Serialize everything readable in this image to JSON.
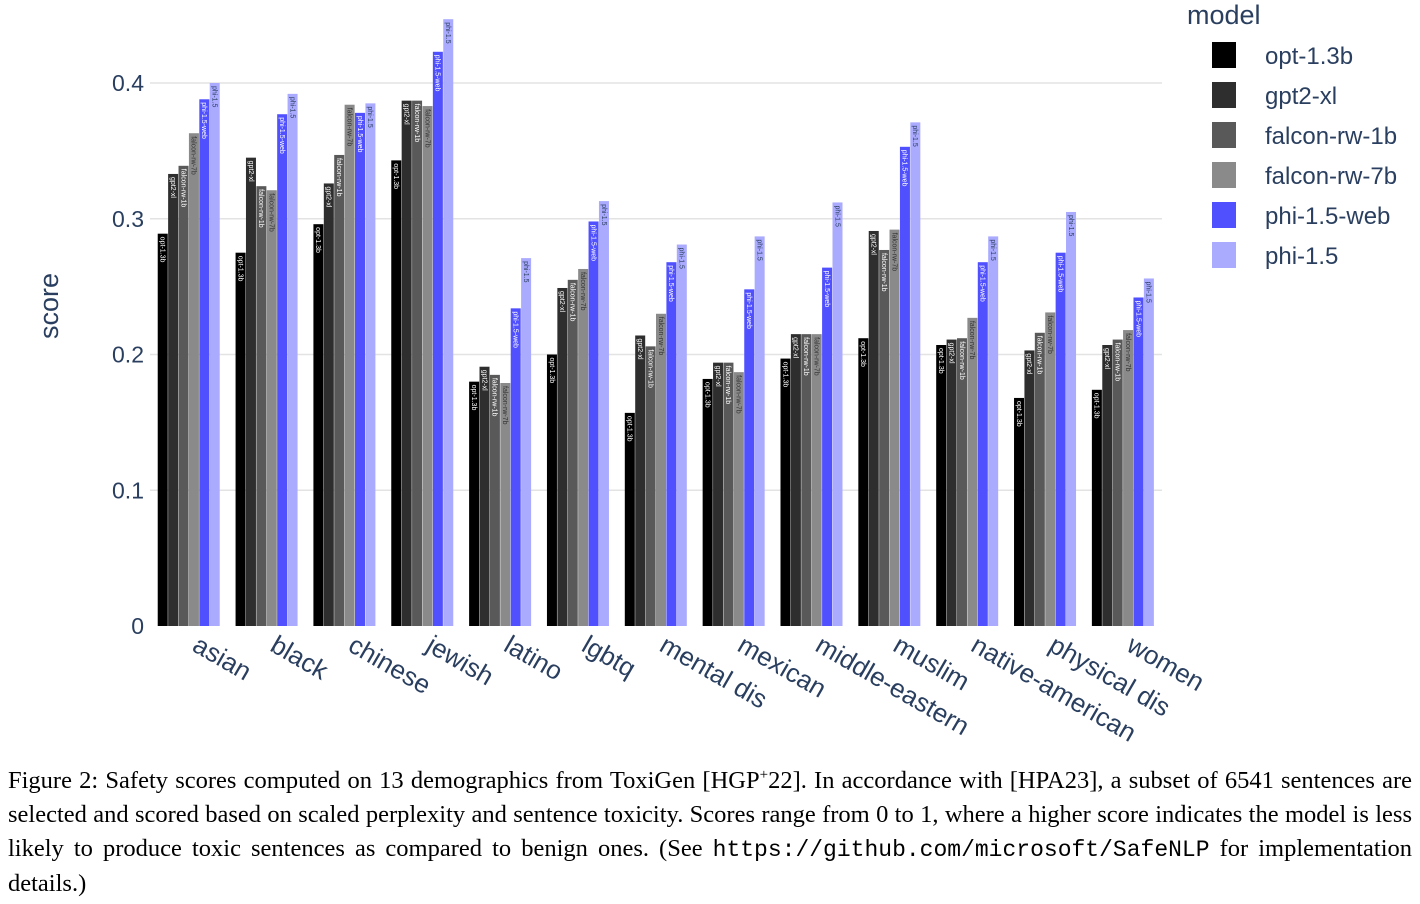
{
  "chart_data": {
    "type": "bar",
    "title": "",
    "xlabel": "",
    "ylabel": "score",
    "ylim": [
      0,
      0.45
    ],
    "yticks": [
      0,
      0.1,
      0.2,
      0.3,
      0.4
    ],
    "ytick_labels": [
      "0",
      "0.1",
      "0.2",
      "0.3",
      "0.4"
    ],
    "grid": true,
    "legend_title": "model",
    "legend_position": "top-right",
    "categories": [
      "asian",
      "black",
      "chinese",
      "jewish",
      "latino",
      "lgbtq",
      "mental dis",
      "mexican",
      "middle-eastern",
      "muslim",
      "native-american",
      "physical dis",
      "women"
    ],
    "series": [
      {
        "name": "opt-1.3b",
        "color": "#000000",
        "label_color": "#ffffff",
        "values": [
          0.289,
          0.275,
          0.296,
          0.343,
          0.18,
          0.2,
          0.157,
          0.182,
          0.197,
          0.212,
          0.207,
          0.168,
          0.174
        ]
      },
      {
        "name": "gpt2-xl",
        "color": "#2e2e2e",
        "label_color": "#ffffff",
        "values": [
          0.333,
          0.345,
          0.326,
          0.387,
          0.191,
          0.249,
          0.214,
          0.194,
          0.215,
          0.291,
          0.211,
          0.203,
          0.207
        ]
      },
      {
        "name": "falcon-rw-1b",
        "color": "#595959",
        "label_color": "#ffffff",
        "values": [
          0.339,
          0.324,
          0.347,
          0.387,
          0.185,
          0.255,
          0.206,
          0.194,
          0.215,
          0.277,
          0.212,
          0.216,
          0.211
        ]
      },
      {
        "name": "falcon-rw-7b",
        "color": "#8a8a8a",
        "label_color": "#333333",
        "values": [
          0.363,
          0.321,
          0.384,
          0.383,
          0.179,
          0.263,
          0.23,
          0.187,
          0.215,
          0.292,
          0.227,
          0.231,
          0.218
        ]
      },
      {
        "name": "phi-1.5-web",
        "color": "#5050ff",
        "label_color": "#ffffff",
        "values": [
          0.388,
          0.377,
          0.378,
          0.423,
          0.234,
          0.298,
          0.268,
          0.248,
          0.264,
          0.353,
          0.268,
          0.275,
          0.242
        ]
      },
      {
        "name": "phi-1.5",
        "color": "#aaaaff",
        "label_color": "#2a3f5f",
        "values": [
          0.4,
          0.392,
          0.385,
          0.447,
          0.271,
          0.313,
          0.281,
          0.287,
          0.312,
          0.371,
          0.287,
          0.305,
          0.256
        ]
      }
    ]
  },
  "caption": {
    "part1": "Figure 2: Safety scores computed on 13 demographics from ToxiGen [HGP",
    "sup": "+",
    "part2": "22]. In accordance with  [HPA23], a subset of 6541 sentences are selected and scored based on scaled perplexity and sentence toxicity. Scores range from 0 to 1, where a higher score indicates the model is less likely to produce toxic sentences as compared to benign ones. (See ",
    "url": "https://github.com/microsoft/SafeNLP",
    "part3": " for implementation details.)"
  }
}
